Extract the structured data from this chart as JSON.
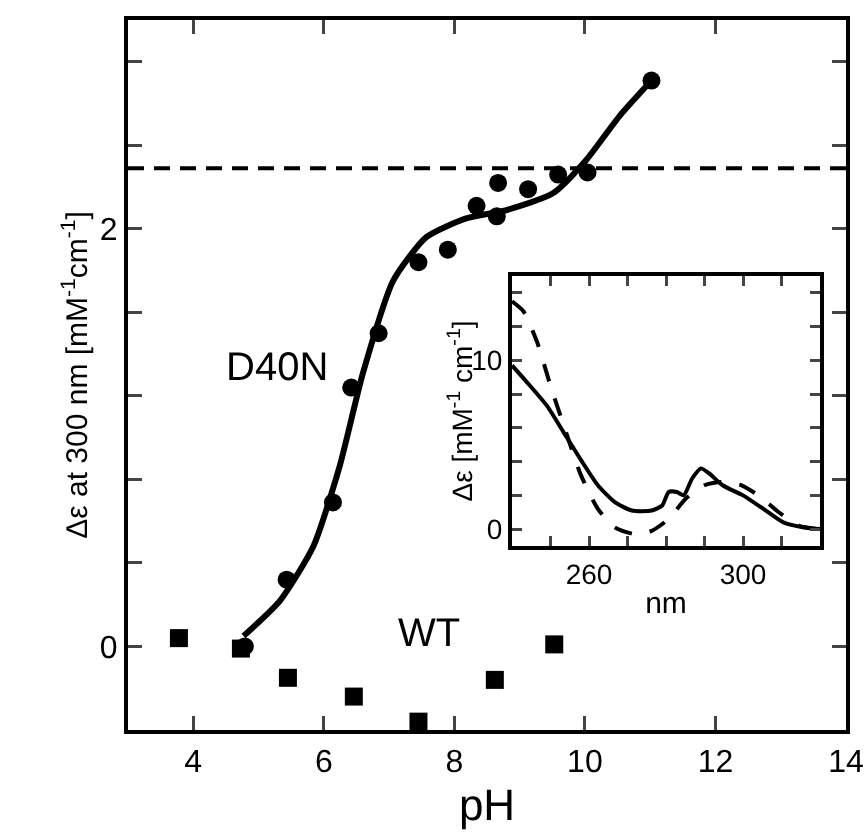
{
  "chart_data": [
    {
      "type": "scatter",
      "xlabel": "pH",
      "ylabel": "Δε at 300 nm [mM$^{-1}$cm$^{-1}$]",
      "xlim": [
        3,
        14
      ],
      "xticks": [
        4,
        6,
        8,
        10,
        12,
        14
      ],
      "ylim": [
        -0.4,
        3.0
      ],
      "yticks": [
        {
          "value": -0.4,
          "label": null
        },
        0,
        {
          "value": 0.4,
          "label": null
        },
        {
          "value": 0.8,
          "label": null
        },
        {
          "value": 1.2,
          "label": null
        },
        {
          "value": 1.6,
          "label": null
        },
        2,
        {
          "value": 2.4,
          "label": null
        },
        {
          "value": 2.8,
          "label": null
        }
      ],
      "grid": false,
      "legend": false,
      "series": [
        {
          "type": "scatter",
          "name": "D40N",
          "marker": "circle",
          "color": "#000000",
          "x": [
            4.79,
            5.43,
            6.14,
            6.42,
            6.84,
            7.45,
            7.9,
            8.34,
            8.67,
            8.65,
            9.13,
            9.59,
            10.04,
            11.02
          ],
          "values": [
            0,
            0.32,
            0.69,
            1.24,
            1.5,
            1.84,
            1.9,
            2.11,
            2.22,
            2.06,
            2.19,
            2.26,
            2.27,
            2.71
          ]
        },
        {
          "type": "line",
          "marker": "none",
          "line_style": "solid",
          "color": "#000000",
          "x": [
            4.77,
            5.33,
            5.84,
            6.24,
            6.6,
            7.06,
            7.57,
            8.18,
            8.8,
            9.51,
            10.02,
            10.53,
            11.02
          ],
          "values": [
            0.05,
            0.22,
            0.48,
            0.86,
            1.31,
            1.75,
            1.96,
            2.05,
            2.09,
            2.17,
            2.33,
            2.54,
            2.71
          ]
        },
        {
          "type": "scatter",
          "name": "WT",
          "marker": "square",
          "color": "#000000",
          "x": [
            3.78,
            4.73,
            5.45,
            6.46,
            7.45,
            8.62,
            9.53
          ],
          "values": [
            0.04,
            -0.01,
            -0.15,
            -0.24,
            -0.36,
            -0.16,
            0.01
          ]
        }
      ],
      "ref_lines": [
        {
          "axis": "y",
          "value": 2.29,
          "line_style": "dashed",
          "color": "#000000"
        }
      ]
    },
    {
      "type": "line",
      "xlabel": "nm",
      "ylabel": "Δε [mM$^{-1}$ cm$^{-1}$]",
      "xlim": [
        240,
        320
      ],
      "xticks": [
        {
          "value": 250,
          "label": null
        },
        260,
        {
          "value": 270,
          "label": null
        },
        {
          "value": 280,
          "label": null
        },
        {
          "value": 290,
          "label": null
        },
        300,
        {
          "value": 310,
          "label": null
        }
      ],
      "ylim": [
        -1,
        15
      ],
      "yticks": [
        0,
        {
          "value": 2,
          "label": null
        },
        {
          "value": 4,
          "label": null
        },
        {
          "value": 6,
          "label": null
        },
        {
          "value": 8,
          "label": null
        },
        10,
        {
          "value": 12,
          "label": null
        },
        {
          "value": 14,
          "label": null
        }
      ],
      "grid": false,
      "legend": false,
      "marker": "none",
      "series": [
        {
          "line_style": "solid",
          "color": "#000000",
          "x": [
            240,
            243.9,
            249.1,
            253.5,
            257.9,
            262.3,
            266.7,
            271.1,
            276.3,
            279,
            280.7,
            282.8,
            284.6,
            286.8,
            289.1,
            291.2,
            294.7,
            300,
            305.3,
            310.5,
            315.8,
            320
          ],
          "values": [
            9.7,
            8.7,
            7.3,
            5.7,
            4.1,
            2.6,
            1.6,
            1.1,
            1.1,
            1.4,
            2.2,
            2.2,
            2.0,
            3.0,
            3.6,
            3.3,
            2.6,
            2.0,
            1.2,
            0.4,
            0.1,
            0
          ]
        },
        {
          "line_style": "dashed",
          "color": "#000000",
          "x": [
            240,
            243,
            246.5,
            250,
            253.5,
            257.9,
            262.3,
            266.7,
            272,
            276.3,
            280.7,
            285.1,
            290,
            294.4,
            299.6,
            304,
            309.3,
            314.6,
            320
          ],
          "values": [
            13.5,
            12.9,
            11.1,
            8.5,
            6.1,
            3.2,
            1.2,
            0.1,
            -0.3,
            -0.1,
            0.6,
            1.8,
            2.6,
            2.8,
            2.6,
            2.0,
            1.0,
            0.2,
            0
          ]
        }
      ]
    }
  ]
}
